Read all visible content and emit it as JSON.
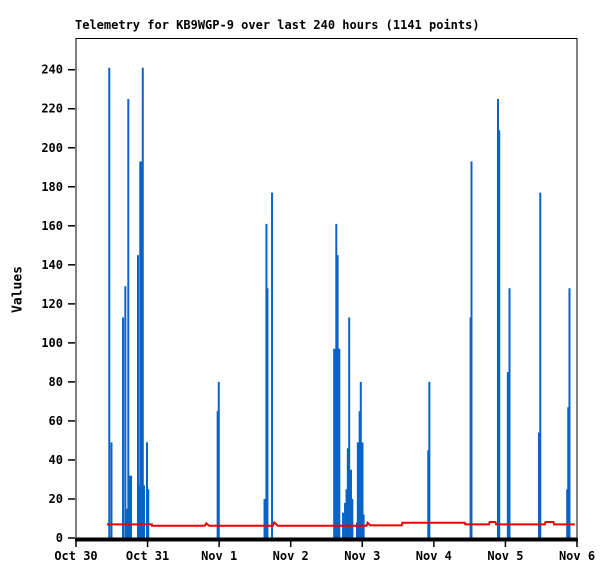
{
  "page": {
    "background": "#ffffff"
  },
  "chart_data": {
    "type": "line",
    "title": "Telemetry for KB9WGP-9 over last 240 hours (1141 points)",
    "ylabel": "Values",
    "xlabel": "",
    "grid": false,
    "legend": "none",
    "xlim_days": [
      0,
      7
    ],
    "ylim": [
      0,
      256
    ],
    "y_ticks": [
      0,
      20,
      40,
      60,
      80,
      100,
      120,
      140,
      160,
      180,
      200,
      220,
      240
    ],
    "x_ticks": [
      {
        "t": 0,
        "label": "Oct 30"
      },
      {
        "t": 1,
        "label": "Oct 31"
      },
      {
        "t": 2,
        "label": "Nov 1"
      },
      {
        "t": 3,
        "label": "Nov 2"
      },
      {
        "t": 4,
        "label": "Nov 3"
      },
      {
        "t": 5,
        "label": "Nov 4"
      },
      {
        "t": 6,
        "label": "Nov 5"
      },
      {
        "t": 7,
        "label": "Nov 6"
      }
    ],
    "colors": {
      "axis": "#000000",
      "spikes": "#0b63c6",
      "baseline": "#ee0000"
    },
    "series": [
      {
        "name": "telemetry-spikes",
        "type": "impulse",
        "color": "#0b63c6",
        "points_t_value_width": [
          [
            0.465,
            241,
            2
          ],
          [
            0.496,
            49,
            2
          ],
          [
            0.657,
            113,
            2
          ],
          [
            0.689,
            129,
            2
          ],
          [
            0.706,
            15,
            2
          ],
          [
            0.731,
            225,
            2
          ],
          [
            0.755,
            32,
            4
          ],
          [
            0.866,
            145,
            2
          ],
          [
            0.905,
            193,
            3
          ],
          [
            0.908,
            27,
            8
          ],
          [
            0.933,
            241,
            2
          ],
          [
            0.992,
            49,
            2
          ],
          [
            1.01,
            25,
            2
          ],
          [
            1.979,
            65,
            2
          ],
          [
            1.995,
            80,
            2
          ],
          [
            2.641,
            20,
            3
          ],
          [
            2.661,
            161,
            2
          ],
          [
            2.668,
            128,
            3
          ],
          [
            2.739,
            177,
            2
          ],
          [
            3.614,
            97,
            3
          ],
          [
            3.637,
            161,
            2
          ],
          [
            3.655,
            145,
            2
          ],
          [
            3.672,
            97,
            3
          ],
          [
            3.731,
            13,
            2
          ],
          [
            3.759,
            18,
            2
          ],
          [
            3.78,
            25,
            2
          ],
          [
            3.798,
            46,
            2
          ],
          [
            3.817,
            113,
            2
          ],
          [
            3.842,
            35,
            2
          ],
          [
            3.861,
            20,
            2
          ],
          [
            3.926,
            8,
            2
          ],
          [
            3.945,
            49,
            3
          ],
          [
            3.963,
            65,
            2
          ],
          [
            3.979,
            80,
            2
          ],
          [
            3.996,
            49,
            3
          ],
          [
            4.019,
            12,
            2
          ],
          [
            4.922,
            45,
            2
          ],
          [
            4.937,
            80,
            2
          ],
          [
            5.513,
            113,
            2
          ],
          [
            5.526,
            193,
            2
          ],
          [
            5.896,
            225,
            2
          ],
          [
            5.906,
            209,
            3
          ],
          [
            6.041,
            85,
            3
          ],
          [
            6.057,
            128,
            2
          ],
          [
            6.476,
            54,
            3
          ],
          [
            6.487,
            177,
            2
          ],
          [
            6.877,
            25,
            4
          ],
          [
            6.885,
            67,
            3
          ],
          [
            6.895,
            128,
            2
          ]
        ]
      },
      {
        "name": "baseline-value",
        "type": "line",
        "color": "#ee0000",
        "stroke_width": 2,
        "points_t_value": [
          [
            0.433,
            7.0
          ],
          [
            1.06,
            7.0
          ],
          [
            1.062,
            6.3
          ],
          [
            1.8,
            6.3
          ],
          [
            1.82,
            7.5
          ],
          [
            1.86,
            6.3
          ],
          [
            2.75,
            6.3
          ],
          [
            2.77,
            8.0
          ],
          [
            2.82,
            6.3
          ],
          [
            4.06,
            6.3
          ],
          [
            4.075,
            7.8
          ],
          [
            4.11,
            6.5
          ],
          [
            4.55,
            6.5
          ],
          [
            4.56,
            7.8
          ],
          [
            5.43,
            7.8
          ],
          [
            5.44,
            7.0
          ],
          [
            5.77,
            7.0
          ],
          [
            5.78,
            8.2
          ],
          [
            5.86,
            8.2
          ],
          [
            5.87,
            7.0
          ],
          [
            6.55,
            7.0
          ],
          [
            6.56,
            8.2
          ],
          [
            6.67,
            8.2
          ],
          [
            6.68,
            7.0
          ],
          [
            6.97,
            7.0
          ]
        ]
      }
    ]
  }
}
